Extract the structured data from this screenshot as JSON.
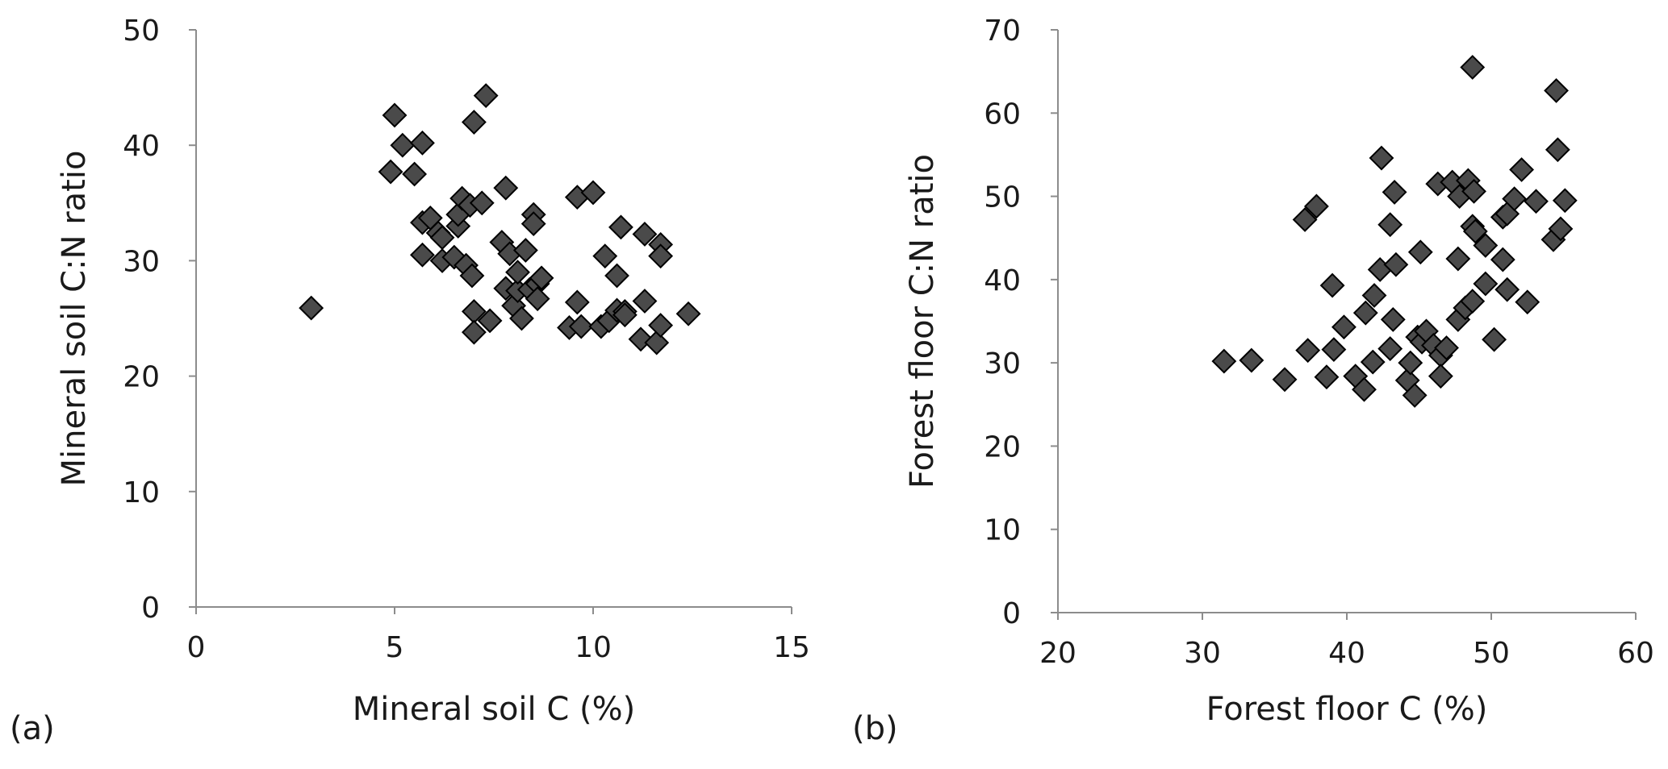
{
  "chart_data": [
    {
      "type": "scatter",
      "panel_label": "(a)",
      "xlabel": "Mineral soil C (%)",
      "ylabel": "Mineral soil C:N ratio",
      "xlim": [
        0,
        15
      ],
      "ylim": [
        0,
        50
      ],
      "xticks": [
        0,
        5,
        10,
        15
      ],
      "yticks": [
        0,
        10,
        20,
        30,
        40,
        50
      ],
      "grid": false,
      "marker": "diamond",
      "marker_color": "#4a4a4a",
      "points": [
        [
          2.9,
          25.9
        ],
        [
          4.9,
          37.7
        ],
        [
          5.0,
          42.6
        ],
        [
          5.2,
          40.0
        ],
        [
          5.5,
          37.5
        ],
        [
          5.7,
          40.2
        ],
        [
          5.7,
          33.3
        ],
        [
          5.7,
          30.5
        ],
        [
          5.9,
          33.7
        ],
        [
          6.1,
          32.4
        ],
        [
          6.2,
          32.0
        ],
        [
          6.2,
          30.0
        ],
        [
          6.5,
          30.3
        ],
        [
          6.6,
          33.0
        ],
        [
          6.6,
          34.0
        ],
        [
          6.7,
          35.4
        ],
        [
          6.8,
          29.6
        ],
        [
          6.9,
          34.8
        ],
        [
          6.95,
          28.7
        ],
        [
          7.0,
          42.0
        ],
        [
          7.0,
          25.6
        ],
        [
          7.0,
          23.8
        ],
        [
          7.2,
          35.0
        ],
        [
          7.3,
          44.3
        ],
        [
          7.4,
          24.8
        ],
        [
          7.7,
          31.6
        ],
        [
          7.8,
          27.6
        ],
        [
          7.8,
          36.3
        ],
        [
          7.9,
          30.6
        ],
        [
          8.0,
          26.1
        ],
        [
          8.1,
          27.4
        ],
        [
          8.1,
          29.0
        ],
        [
          8.2,
          25.0
        ],
        [
          8.3,
          30.9
        ],
        [
          8.4,
          27.5
        ],
        [
          8.5,
          34.0
        ],
        [
          8.5,
          33.2
        ],
        [
          8.6,
          28.0
        ],
        [
          8.6,
          26.7
        ],
        [
          8.7,
          28.5
        ],
        [
          9.4,
          24.2
        ],
        [
          9.6,
          35.5
        ],
        [
          9.6,
          26.4
        ],
        [
          9.7,
          24.3
        ],
        [
          10.0,
          35.9
        ],
        [
          10.2,
          24.3
        ],
        [
          10.3,
          30.4
        ],
        [
          10.4,
          24.8
        ],
        [
          10.6,
          25.7
        ],
        [
          10.6,
          28.7
        ],
        [
          10.7,
          32.9
        ],
        [
          10.8,
          25.6
        ],
        [
          10.8,
          25.3
        ],
        [
          11.2,
          23.2
        ],
        [
          11.3,
          32.3
        ],
        [
          11.3,
          26.5
        ],
        [
          11.6,
          22.9
        ],
        [
          11.7,
          31.4
        ],
        [
          11.7,
          24.4
        ],
        [
          11.7,
          30.4
        ],
        [
          12.4,
          25.4
        ]
      ]
    },
    {
      "type": "scatter",
      "panel_label": "(b)",
      "xlabel": "Forest floor C (%)",
      "ylabel": "Forest floor C:N ratio",
      "xlim": [
        20,
        60
      ],
      "ylim": [
        0,
        70
      ],
      "xticks": [
        20,
        30,
        40,
        50,
        60
      ],
      "yticks": [
        0,
        10,
        20,
        30,
        40,
        50,
        60,
        70
      ],
      "grid": false,
      "marker": "diamond",
      "marker_color": "#4a4a4a",
      "points": [
        [
          31.5,
          30.2
        ],
        [
          33.4,
          30.3
        ],
        [
          35.7,
          28.0
        ],
        [
          37.1,
          47.2
        ],
        [
          37.3,
          31.5
        ],
        [
          37.9,
          48.8
        ],
        [
          38.6,
          28.3
        ],
        [
          39.0,
          39.3
        ],
        [
          39.1,
          31.6
        ],
        [
          39.8,
          34.3
        ],
        [
          40.6,
          28.4
        ],
        [
          41.2,
          26.8
        ],
        [
          41.3,
          36.0
        ],
        [
          41.8,
          30.1
        ],
        [
          41.9,
          38.1
        ],
        [
          42.3,
          41.2
        ],
        [
          42.4,
          54.6
        ],
        [
          43.0,
          31.7
        ],
        [
          43.0,
          46.6
        ],
        [
          43.2,
          35.2
        ],
        [
          43.3,
          50.5
        ],
        [
          43.4,
          41.8
        ],
        [
          44.2,
          27.9
        ],
        [
          44.4,
          30.0
        ],
        [
          44.7,
          26.1
        ],
        [
          44.9,
          33.1
        ],
        [
          45.1,
          43.3
        ],
        [
          45.2,
          32.5
        ],
        [
          45.5,
          33.8
        ],
        [
          46.0,
          32.1
        ],
        [
          46.3,
          51.5
        ],
        [
          46.5,
          30.9
        ],
        [
          46.5,
          28.4
        ],
        [
          46.9,
          31.8
        ],
        [
          47.3,
          51.7
        ],
        [
          47.7,
          35.2
        ],
        [
          47.7,
          42.5
        ],
        [
          47.8,
          50.0
        ],
        [
          48.2,
          36.6
        ],
        [
          48.4,
          51.9
        ],
        [
          48.7,
          65.5
        ],
        [
          48.7,
          46.4
        ],
        [
          48.7,
          37.4
        ],
        [
          48.8,
          50.6
        ],
        [
          48.9,
          45.8
        ],
        [
          49.6,
          44.1
        ],
        [
          49.6,
          39.5
        ],
        [
          50.2,
          32.8
        ],
        [
          50.8,
          42.4
        ],
        [
          50.8,
          47.5
        ],
        [
          51.1,
          38.8
        ],
        [
          51.1,
          47.9
        ],
        [
          51.6,
          49.7
        ],
        [
          52.1,
          53.2
        ],
        [
          52.5,
          37.3
        ],
        [
          53.1,
          49.4
        ],
        [
          54.3,
          44.8
        ],
        [
          54.5,
          62.7
        ],
        [
          54.6,
          55.6
        ],
        [
          54.8,
          46.1
        ],
        [
          55.1,
          49.5
        ]
      ]
    }
  ]
}
